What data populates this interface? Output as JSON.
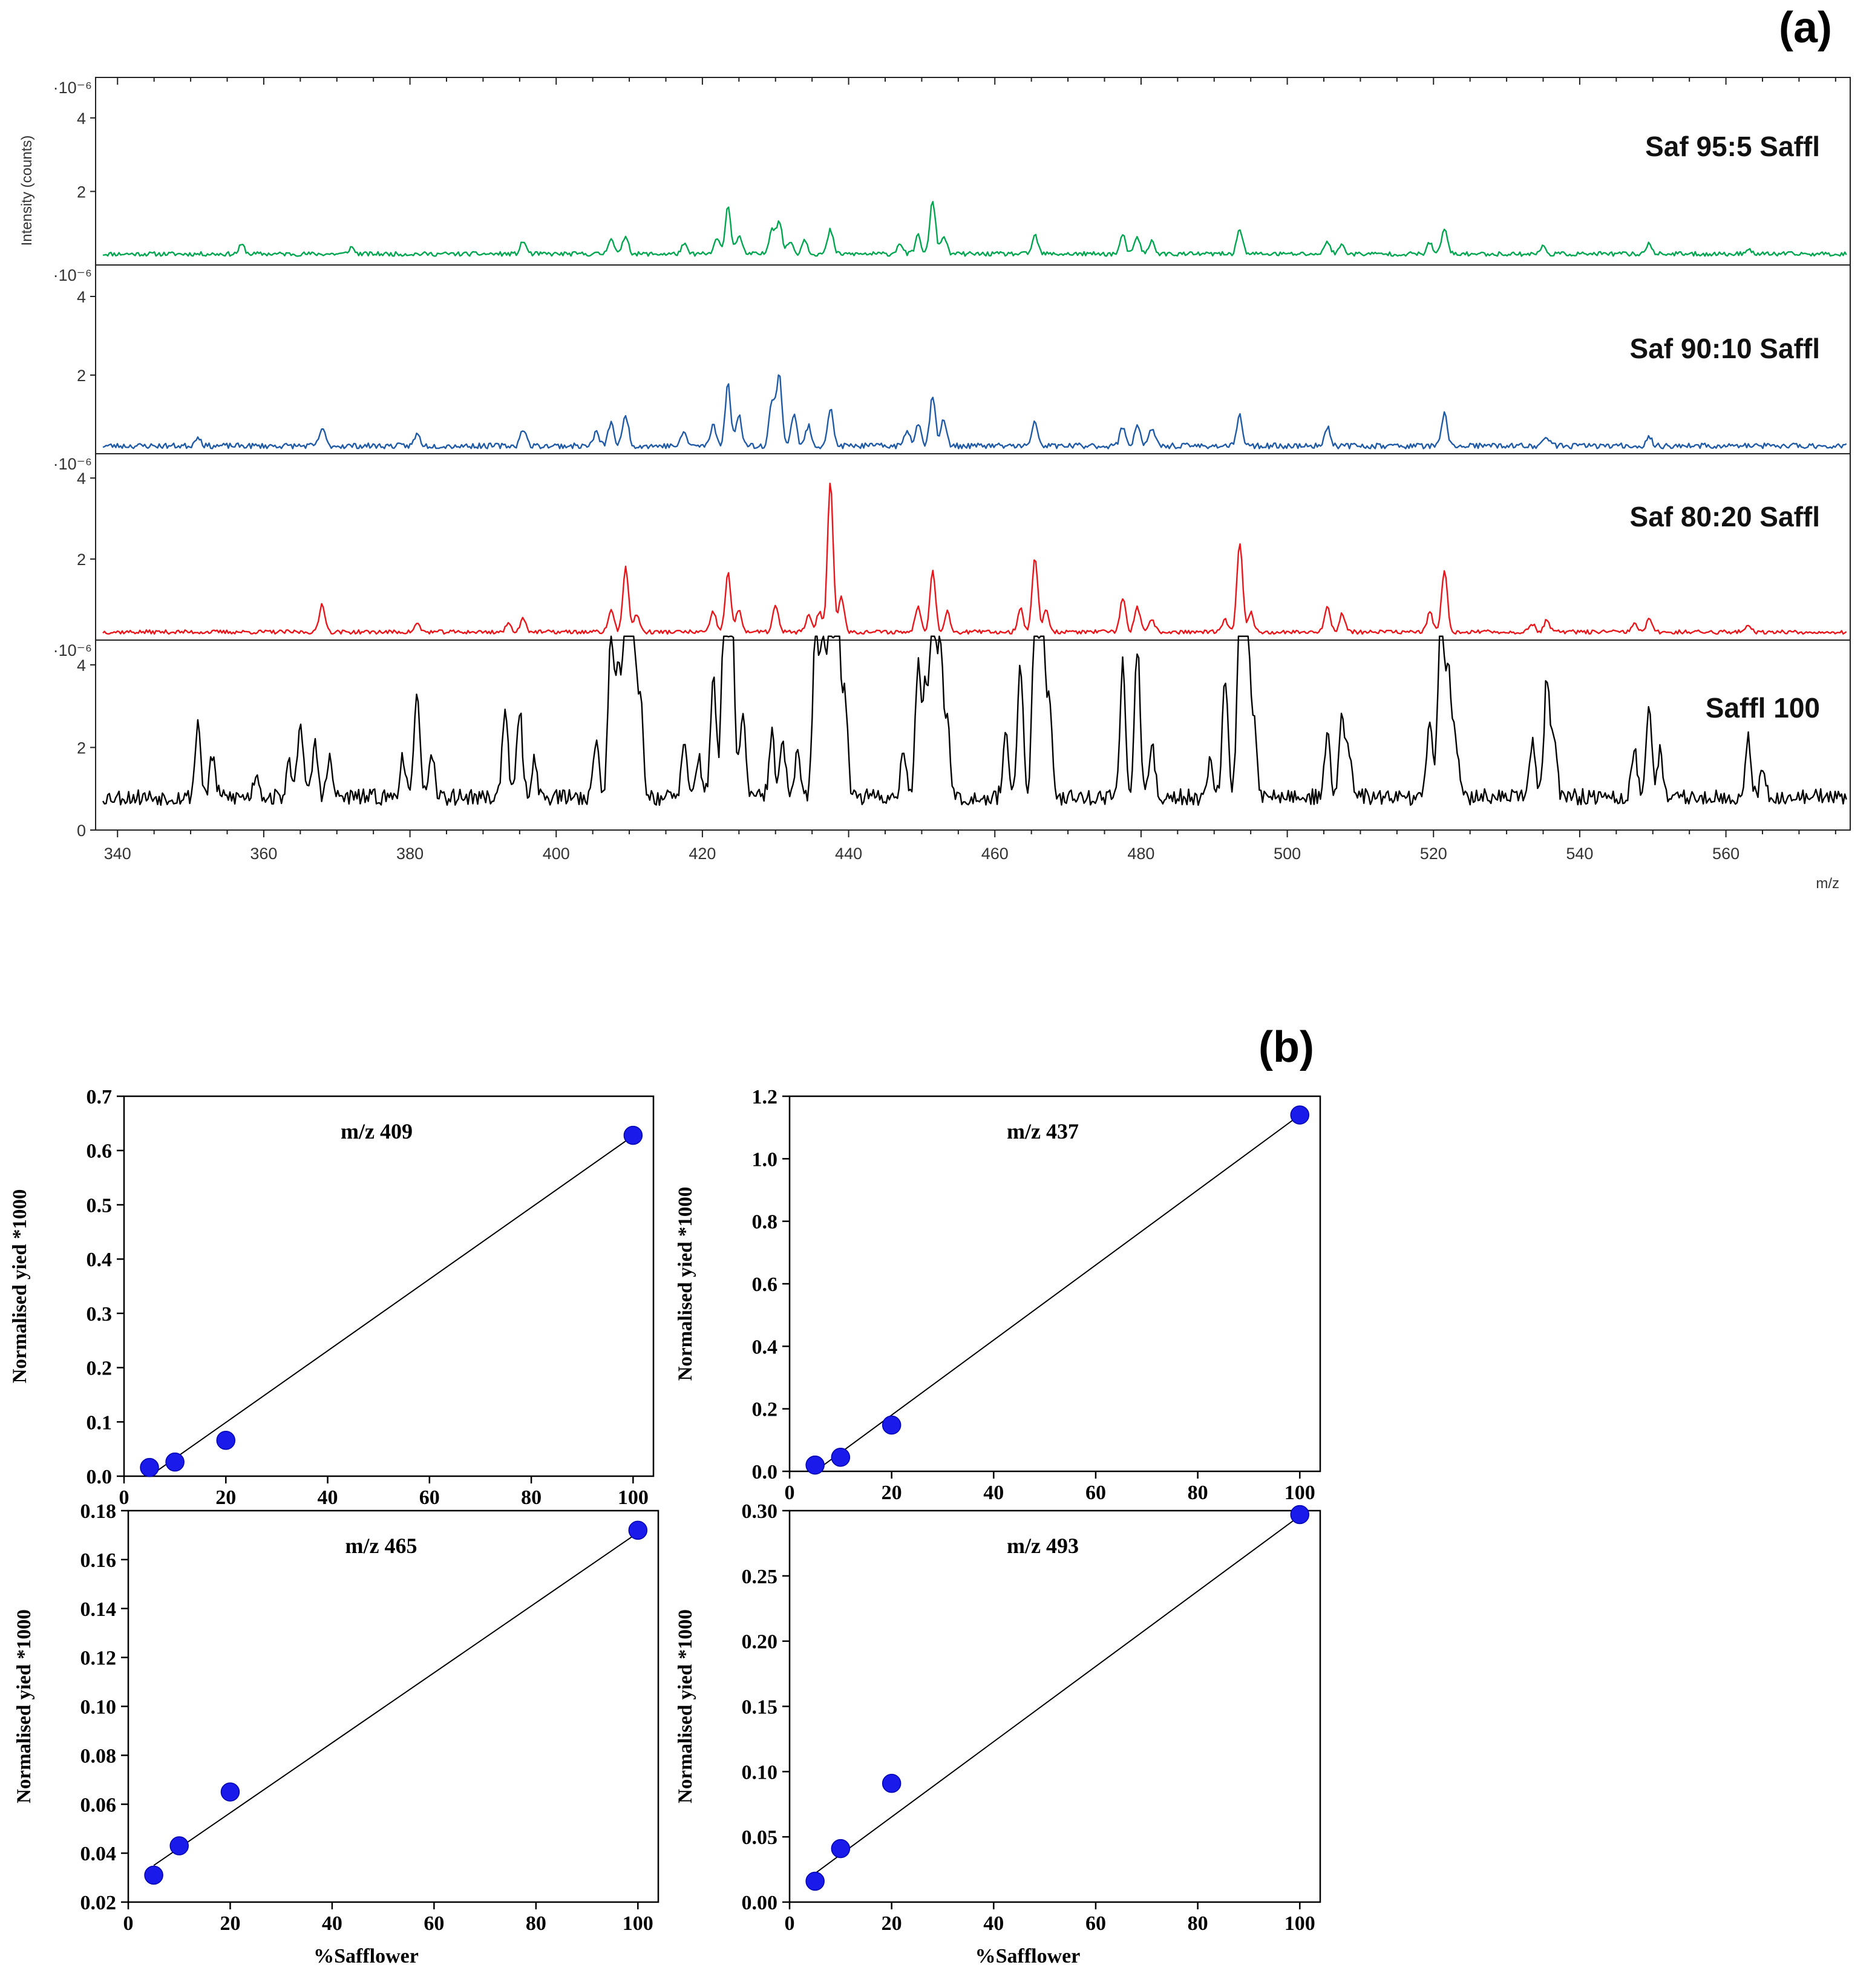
{
  "panel_a_label": "(a)",
  "panel_b_label": "(b)",
  "chart_data": [
    {
      "type": "line",
      "panel": "a",
      "xlabel": "m/z",
      "ylabel": "Intensity (counts)",
      "exponent_label": "·10⁻⁶",
      "xlim": [
        337,
        577
      ],
      "xticks": [
        340,
        360,
        380,
        400,
        420,
        440,
        460,
        480,
        500,
        520,
        540,
        560
      ],
      "yticks_full": [
        0,
        2,
        4
      ],
      "yticks_partial": [
        2,
        4
      ],
      "series": [
        {
          "name": "Saf 95:5 Saffl",
          "color": "#00a650",
          "ylim": [
            0,
            5.1
          ],
          "baseline": 0.3,
          "noise": 0.06,
          "seed": 11,
          "peaks": [
            [
              357,
              0.25
            ],
            [
              372,
              0.18
            ],
            [
              395.5,
              0.35
            ],
            [
              407.5,
              0.45
            ],
            [
              409.5,
              0.5
            ],
            [
              417.5,
              0.25
            ],
            [
              422,
              0.4
            ],
            [
              423.5,
              1.3
            ],
            [
              425,
              0.5
            ],
            [
              429.5,
              0.7
            ],
            [
              430.5,
              0.9
            ],
            [
              432,
              0.35
            ],
            [
              434,
              0.4
            ],
            [
              437.5,
              0.65
            ],
            [
              447,
              0.3
            ],
            [
              449.5,
              0.5
            ],
            [
              451.5,
              1.45
            ],
            [
              453,
              0.5
            ],
            [
              465.5,
              0.5
            ],
            [
              477.5,
              0.5
            ],
            [
              479.5,
              0.45
            ],
            [
              481.5,
              0.35
            ],
            [
              493.5,
              0.7
            ],
            [
              505.5,
              0.35
            ],
            [
              507.5,
              0.25
            ],
            [
              519.5,
              0.3
            ],
            [
              521.5,
              0.7
            ],
            [
              535,
              0.2
            ],
            [
              549.5,
              0.3
            ],
            [
              563,
              0.15
            ]
          ]
        },
        {
          "name": "Saf 90:10 Saffl",
          "color": "#1f5aa6",
          "ylim": [
            0,
            4.8
          ],
          "baseline": 0.2,
          "noise": 0.07,
          "seed": 23,
          "peaks": [
            [
              351,
              0.25
            ],
            [
              368,
              0.45
            ],
            [
              381,
              0.3
            ],
            [
              395.5,
              0.45
            ],
            [
              405.5,
              0.35
            ],
            [
              407.5,
              0.6
            ],
            [
              409.5,
              0.8
            ],
            [
              417.5,
              0.35
            ],
            [
              421.5,
              0.55
            ],
            [
              423.5,
              1.55
            ],
            [
              425,
              0.8
            ],
            [
              429.5,
              1.1
            ],
            [
              430.5,
              1.8
            ],
            [
              432.5,
              0.8
            ],
            [
              434.5,
              0.5
            ],
            [
              437.5,
              0.95
            ],
            [
              448,
              0.4
            ],
            [
              449.5,
              0.6
            ],
            [
              451.5,
              1.3
            ],
            [
              453,
              0.65
            ],
            [
              465.5,
              0.6
            ],
            [
              477.5,
              0.5
            ],
            [
              479.5,
              0.55
            ],
            [
              481.5,
              0.45
            ],
            [
              493.5,
              0.75
            ],
            [
              505.5,
              0.5
            ],
            [
              521.5,
              0.8
            ],
            [
              535.5,
              0.25
            ],
            [
              549.5,
              0.2
            ]
          ]
        },
        {
          "name": "Saf 80:20 Saffl",
          "color": "#e8151b",
          "ylim": [
            0,
            4.6
          ],
          "baseline": 0.2,
          "noise": 0.05,
          "seed": 37,
          "peaks": [
            [
              368,
              0.7
            ],
            [
              381,
              0.2
            ],
            [
              393.5,
              0.2
            ],
            [
              395.5,
              0.35
            ],
            [
              407.5,
              0.55
            ],
            [
              409.5,
              1.6
            ],
            [
              411,
              0.45
            ],
            [
              421.5,
              0.5
            ],
            [
              423.5,
              1.45
            ],
            [
              425,
              0.55
            ],
            [
              430,
              0.65
            ],
            [
              434.5,
              0.4
            ],
            [
              436,
              0.5
            ],
            [
              437.5,
              3.7
            ],
            [
              439,
              0.9
            ],
            [
              449.5,
              0.65
            ],
            [
              451.5,
              1.5
            ],
            [
              453.5,
              0.5
            ],
            [
              463.5,
              0.6
            ],
            [
              465.5,
              1.85
            ],
            [
              467,
              0.55
            ],
            [
              477.5,
              0.85
            ],
            [
              479.5,
              0.6
            ],
            [
              481.5,
              0.3
            ],
            [
              491.5,
              0.3
            ],
            [
              493.5,
              2.2
            ],
            [
              495,
              0.5
            ],
            [
              505.5,
              0.65
            ],
            [
              507.5,
              0.45
            ],
            [
              519.5,
              0.5
            ],
            [
              521.5,
              1.55
            ],
            [
              533.5,
              0.2
            ],
            [
              535.5,
              0.3
            ],
            [
              547.5,
              0.2
            ],
            [
              549.5,
              0.3
            ],
            [
              563,
              0.2
            ]
          ]
        },
        {
          "name": "Saffl 100",
          "color": "#000000",
          "ylim": [
            0,
            4.6
          ],
          "baseline": 0.8,
          "noise": 0.2,
          "seed": 53,
          "peaks": [
            [
              351,
              1.8
            ],
            [
              353,
              1.0
            ],
            [
              359,
              0.6
            ],
            [
              363.5,
              0.8
            ],
            [
              365,
              1.9
            ],
            [
              367,
              1.3
            ],
            [
              369,
              0.9
            ],
            [
              379,
              1.0
            ],
            [
              381,
              2.6
            ],
            [
              383,
              0.9
            ],
            [
              393,
              2.2
            ],
            [
              395,
              2.1
            ],
            [
              397,
              0.9
            ],
            [
              405.5,
              1.4
            ],
            [
              407.5,
              4.0
            ],
            [
              408.5,
              3.2
            ],
            [
              409.5,
              4.5
            ],
            [
              410.5,
              4.4
            ],
            [
              411.5,
              2.5
            ],
            [
              417.5,
              1.2
            ],
            [
              419.5,
              1.0
            ],
            [
              421.5,
              3.0
            ],
            [
              423,
              4.6
            ],
            [
              424,
              4.5
            ],
            [
              425.5,
              2.1
            ],
            [
              429.5,
              1.5
            ],
            [
              431,
              1.3
            ],
            [
              433,
              1.0
            ],
            [
              435.5,
              4.5
            ],
            [
              436.5,
              3.6
            ],
            [
              437.5,
              4.6
            ],
            [
              438.5,
              4.6
            ],
            [
              439.5,
              2.5
            ],
            [
              447.5,
              1.2
            ],
            [
              449.5,
              3.1
            ],
            [
              450.5,
              2.6
            ],
            [
              451.5,
              4.5
            ],
            [
              452.5,
              3.9
            ],
            [
              453.5,
              1.9
            ],
            [
              461.5,
              1.6
            ],
            [
              463.5,
              3.1
            ],
            [
              465.5,
              4.6
            ],
            [
              466.5,
              4.6
            ],
            [
              467.5,
              2.2
            ],
            [
              477.5,
              3.2
            ],
            [
              479.5,
              3.6
            ],
            [
              481.5,
              1.2
            ],
            [
              489.5,
              1.0
            ],
            [
              491.5,
              2.8
            ],
            [
              493.5,
              4.6
            ],
            [
              494.5,
              4.3
            ],
            [
              495.5,
              1.8
            ],
            [
              505.5,
              1.5
            ],
            [
              507.5,
              2.0
            ],
            [
              508.5,
              1.1
            ],
            [
              519.5,
              1.8
            ],
            [
              521,
              4.6
            ],
            [
              522,
              3.2
            ],
            [
              523,
              1.5
            ],
            [
              533.5,
              1.3
            ],
            [
              535.5,
              2.9
            ],
            [
              536.5,
              1.4
            ],
            [
              547.5,
              1.1
            ],
            [
              549.5,
              2.2
            ],
            [
              551,
              1.1
            ],
            [
              563,
              1.4
            ],
            [
              565,
              0.7
            ]
          ]
        }
      ]
    },
    {
      "type": "scatter",
      "panel": "b",
      "title": "m/z 409",
      "xlabel": "",
      "ylabel": "Normalised yied *1000",
      "xlim": [
        0,
        104
      ],
      "ylim": [
        0,
        0.7
      ],
      "xticks": [
        0,
        20,
        40,
        60,
        80,
        100
      ],
      "yticks": [
        "0.0",
        "0.1",
        "0.2",
        "0.3",
        "0.4",
        "0.5",
        "0.6",
        "0.7"
      ],
      "points": [
        {
          "x": 5,
          "y": 0.016
        },
        {
          "x": 10,
          "y": 0.026
        },
        {
          "x": 20,
          "y": 0.066
        },
        {
          "x": 100,
          "y": 0.628
        }
      ],
      "fit_line": [
        {
          "x": 5,
          "y": 0.0
        },
        {
          "x": 100,
          "y": 0.627
        }
      ]
    },
    {
      "type": "scatter",
      "panel": "b",
      "title": "m/z 437",
      "xlabel": "",
      "ylabel": "Normalised yied *1000",
      "xlim": [
        0,
        104
      ],
      "ylim": [
        0,
        1.2
      ],
      "xticks": [
        0,
        20,
        40,
        60,
        80,
        100
      ],
      "yticks": [
        "0.0",
        "0.2",
        "0.4",
        "0.6",
        "0.8",
        "1.0",
        "1.2"
      ],
      "points": [
        {
          "x": 5,
          "y": 0.02
        },
        {
          "x": 10,
          "y": 0.045
        },
        {
          "x": 20,
          "y": 0.148
        },
        {
          "x": 100,
          "y": 1.14
        }
      ],
      "fit_line": [
        {
          "x": 5,
          "y": 0.0
        },
        {
          "x": 100,
          "y": 1.14
        }
      ]
    },
    {
      "type": "scatter",
      "panel": "b",
      "title": "m/z 465",
      "xlabel": "%Safflower",
      "ylabel": "Normalised yied *1000",
      "xlim": [
        0,
        104
      ],
      "ylim": [
        0.02,
        0.18
      ],
      "xticks": [
        0,
        20,
        40,
        60,
        80,
        100
      ],
      "yticks": [
        "0.02",
        "0.04",
        "0.06",
        "0.08",
        "0.10",
        "0.12",
        "0.14",
        "0.16",
        "0.18"
      ],
      "points": [
        {
          "x": 5,
          "y": 0.031
        },
        {
          "x": 10,
          "y": 0.043
        },
        {
          "x": 20,
          "y": 0.065
        },
        {
          "x": 100,
          "y": 0.172
        }
      ],
      "fit_line": [
        {
          "x": 5,
          "y": 0.035
        },
        {
          "x": 100,
          "y": 0.171
        }
      ]
    },
    {
      "type": "scatter",
      "panel": "b",
      "title": "m/z 493",
      "xlabel": "%Safflower",
      "ylabel": "Normalised yied *1000",
      "xlim": [
        0,
        104
      ],
      "ylim": [
        0,
        0.3
      ],
      "xticks": [
        0,
        20,
        40,
        60,
        80,
        100
      ],
      "yticks": [
        "0.00",
        "0.05",
        "0.10",
        "0.15",
        "0.20",
        "0.25",
        "0.30"
      ],
      "points": [
        {
          "x": 5,
          "y": 0.016
        },
        {
          "x": 10,
          "y": 0.041
        },
        {
          "x": 20,
          "y": 0.091
        },
        {
          "x": 100,
          "y": 0.297
        }
      ],
      "fit_line": [
        {
          "x": 5,
          "y": 0.022
        },
        {
          "x": 100,
          "y": 0.296
        }
      ]
    }
  ]
}
